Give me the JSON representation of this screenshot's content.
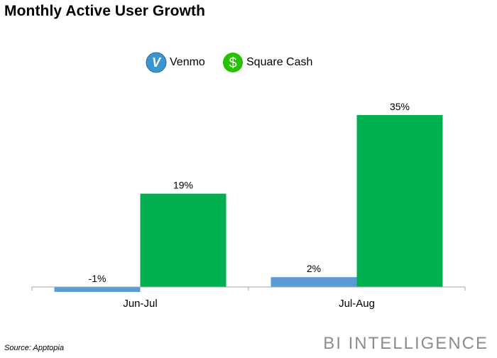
{
  "title": "Monthly Active User Growth",
  "legend": {
    "items": [
      {
        "label": "Venmo",
        "icon": "venmo-logo-icon",
        "color": "#5b9bd5",
        "letter": "V"
      },
      {
        "label": "Square Cash",
        "icon": "square-cash-logo-icon",
        "color": "#00b050",
        "letter": "$"
      }
    ]
  },
  "chart_data": {
    "type": "bar",
    "categories": [
      "Jun-Jul",
      "Jul-Aug"
    ],
    "series": [
      {
        "name": "Venmo",
        "values": [
          -1,
          2
        ],
        "labels": [
          "-1%",
          "2%"
        ],
        "color": "#5b9bd5"
      },
      {
        "name": "Square Cash",
        "values": [
          19,
          35
        ],
        "labels": [
          "19%",
          "35%"
        ],
        "color": "#00b050"
      }
    ],
    "title": "Monthly Active User Growth",
    "xlabel": "",
    "ylabel": "",
    "ylim": [
      -1,
      35
    ],
    "grid": false,
    "legend_position": "top-center"
  },
  "source": "Source: Apptopia",
  "brand": "BI INTELLIGENCE"
}
